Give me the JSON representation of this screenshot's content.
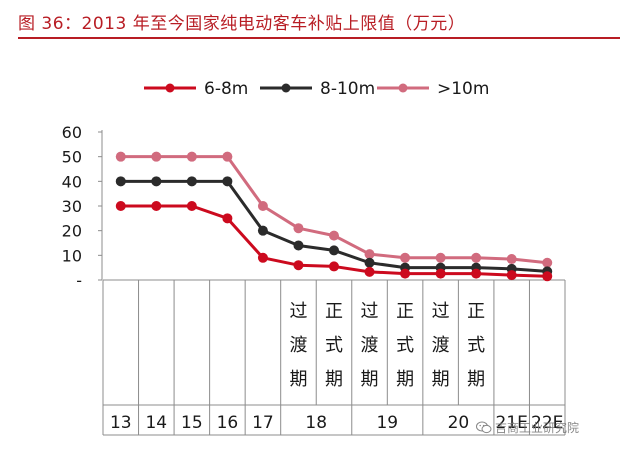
{
  "header": {
    "figure_title": "图 36：2013 年至今国家纯电动客车补贴上限值（万元）"
  },
  "watermark": {
    "text": "吉商工业研究院"
  },
  "chart_data": {
    "type": "line",
    "title": "图 36：2013 年至今国家纯电动客车补贴上限值（万元）",
    "ylim": [
      0,
      60
    ],
    "y_ticks": [
      {
        "value": 0,
        "label": "-"
      },
      {
        "value": 10,
        "label": "10"
      },
      {
        "value": 20,
        "label": "20"
      },
      {
        "value": 30,
        "label": "30"
      },
      {
        "value": 40,
        "label": "40"
      },
      {
        "value": 50,
        "label": "50"
      },
      {
        "value": 60,
        "label": "60"
      }
    ],
    "grid": false,
    "legend_position": "top",
    "x_slots": 13,
    "x_sublabels": [
      "",
      "",
      "",
      "",
      "",
      "过渡期",
      "正式期",
      "过渡期",
      "正式期",
      "过渡期",
      "正式期",
      "",
      ""
    ],
    "x_year_groups": [
      {
        "label": "13",
        "span": [
          0,
          1
        ]
      },
      {
        "label": "14",
        "span": [
          1,
          2
        ]
      },
      {
        "label": "15",
        "span": [
          2,
          3
        ]
      },
      {
        "label": "16",
        "span": [
          3,
          4
        ]
      },
      {
        "label": "17",
        "span": [
          4,
          5
        ]
      },
      {
        "label": "18",
        "span": [
          5,
          7
        ]
      },
      {
        "label": "19",
        "span": [
          7,
          9
        ]
      },
      {
        "label": "20",
        "span": [
          9,
          11
        ]
      },
      {
        "label": "21E",
        "span": [
          11,
          12
        ]
      },
      {
        "label": "22E",
        "span": [
          12,
          13
        ]
      }
    ],
    "series": [
      {
        "name": "6-8m",
        "color": "#cc0a1e",
        "values": [
          30,
          30,
          30,
          25,
          9,
          6,
          5.5,
          3.3,
          2.6,
          2.6,
          2.6,
          2,
          1.5
        ]
      },
      {
        "name": "8-10m",
        "color": "#2b2b2b",
        "values": [
          40,
          40,
          40,
          40,
          20,
          14,
          12,
          7,
          5,
          5,
          5,
          4.5,
          3.5
        ]
      },
      {
        "name": ">10m",
        "color": "#d16b7e",
        "values": [
          50,
          50,
          50,
          50,
          30,
          21,
          18,
          10.5,
          9,
          9,
          9,
          8.5,
          7
        ]
      }
    ]
  }
}
